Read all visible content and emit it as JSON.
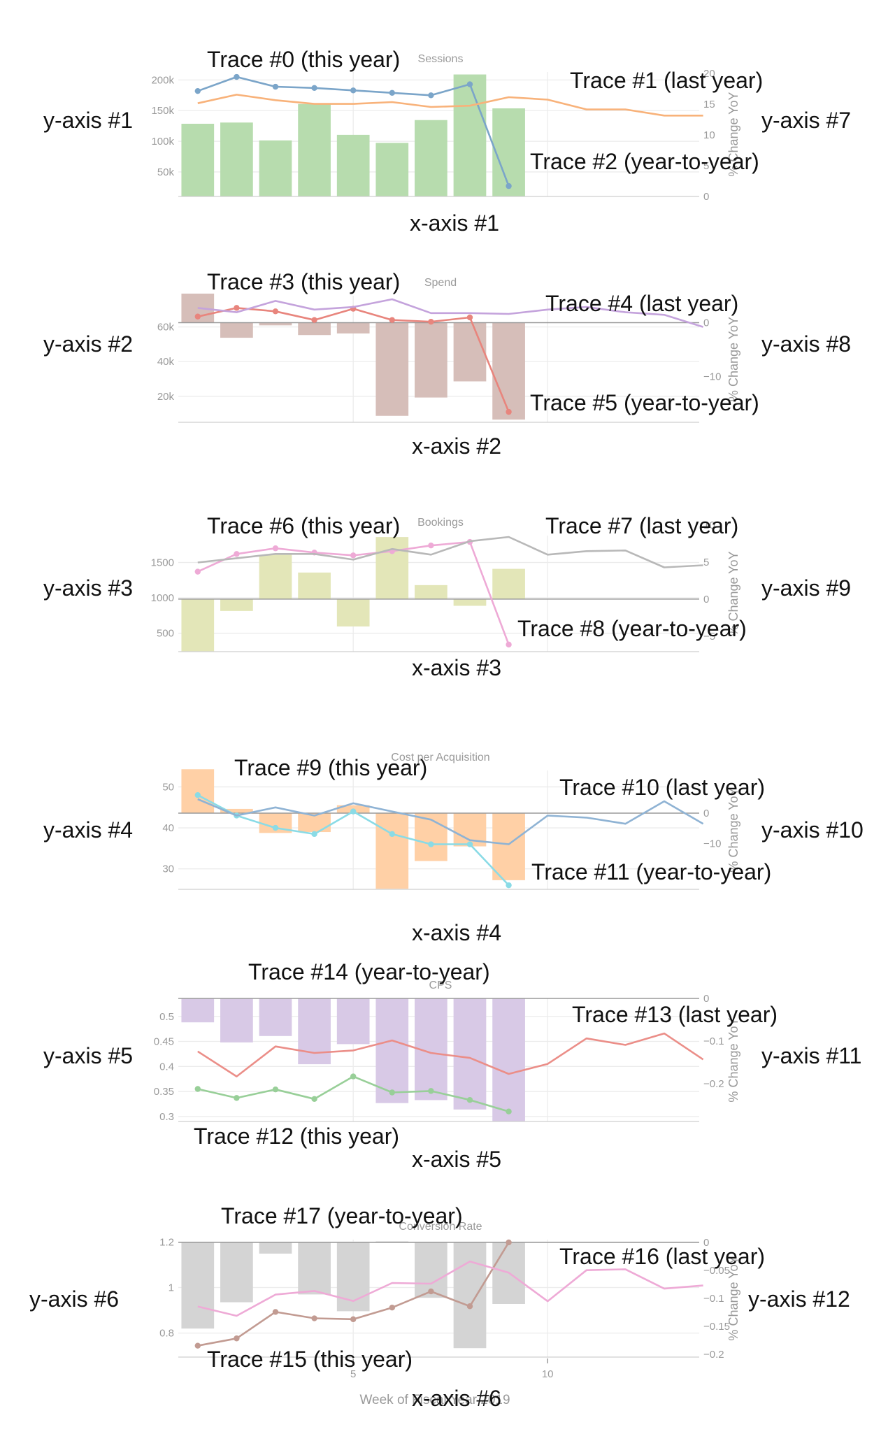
{
  "x_axis_title": "Week of Fiscal Year 2019",
  "chart_data": [
    {
      "type": "bar+line",
      "title": "Sessions",
      "x": [
        1,
        2,
        3,
        4,
        5,
        6,
        7,
        8,
        9,
        10,
        11,
        12,
        13,
        14
      ],
      "xlim": [
        0.5,
        13.9
      ],
      "y_ticks": [
        "200k",
        "150k",
        "100k",
        "50k"
      ],
      "y_tick_values": [
        200000,
        150000,
        100000,
        50000
      ],
      "ylim": [
        10000,
        213000
      ],
      "y2_title": "% Change YoY",
      "y2_ticks": [
        "20",
        "15",
        "10",
        "5",
        "0"
      ],
      "y2_tick_values": [
        20,
        15,
        10,
        5,
        0
      ],
      "y2lim": [
        0,
        20.2
      ],
      "series": [
        {
          "name": "this year",
          "kind": "line",
          "axis": "y",
          "color": "#7ba5c9",
          "markers": true,
          "x": [
            1,
            2,
            3,
            4,
            5,
            6,
            7,
            8,
            9
          ],
          "values": [
            182000,
            205000,
            189000,
            187000,
            183000,
            179000,
            175000,
            193000,
            27000
          ]
        },
        {
          "name": "last year",
          "kind": "line",
          "axis": "y",
          "color": "#f8b27a",
          "markers": false,
          "x": [
            1,
            2,
            3,
            4,
            5,
            6,
            7,
            8,
            9,
            10,
            11,
            12,
            13,
            14
          ],
          "values": [
            162000,
            176000,
            167000,
            161000,
            161000,
            164000,
            156000,
            158000,
            172000,
            168000,
            152000,
            152000,
            142000,
            142000
          ]
        },
        {
          "name": "year-to-year",
          "kind": "bar",
          "axis": "y2",
          "color": "#b7dcae",
          "x": [
            1,
            2,
            3,
            4,
            5,
            6,
            7,
            8,
            9
          ],
          "values": [
            11.8,
            12,
            9.1,
            15,
            10,
            8.7,
            12.4,
            19.8,
            14.3
          ]
        }
      ],
      "annotations": [
        "Trace #0 (this year)",
        "Trace #1 (last year)",
        "Trace #2 (year-to-year)",
        "y-axis #1",
        "y-axis #7",
        "x-axis #1"
      ]
    },
    {
      "type": "bar+line",
      "title": "Spend",
      "x": [
        1,
        2,
        3,
        4,
        5,
        6,
        7,
        8,
        9,
        10,
        11,
        12,
        13,
        14
      ],
      "xlim": [
        0.5,
        13.9
      ],
      "y_ticks": [
        "60k",
        "40k",
        "20k"
      ],
      "y_tick_values": [
        60000,
        40000,
        20000
      ],
      "ylim": [
        5000,
        78000
      ],
      "y2_title": "% Change YoY",
      "y2_ticks": [
        "0",
        "−10"
      ],
      "y2_tick_values": [
        0,
        -10
      ],
      "y2lim": [
        -18.5,
        5
      ],
      "series": [
        {
          "name": "this year",
          "kind": "line",
          "axis": "y",
          "color": "#e8857d",
          "markers": true,
          "x": [
            1,
            2,
            3,
            4,
            5,
            6,
            7,
            8,
            9
          ],
          "values": [
            66000,
            71000,
            69000,
            64000,
            70500,
            64000,
            63000,
            65500,
            11000
          ]
        },
        {
          "name": "last year",
          "kind": "line",
          "axis": "y",
          "color": "#c4a3dc",
          "markers": false,
          "x": [
            1,
            2,
            3,
            4,
            5,
            6,
            7,
            8,
            9,
            10,
            11,
            12,
            13,
            14
          ],
          "values": [
            71000,
            68500,
            75000,
            70000,
            71500,
            76000,
            68000,
            68000,
            67500,
            70000,
            71500,
            68500,
            67000,
            60000
          ]
        },
        {
          "name": "year-to-year",
          "kind": "bar",
          "axis": "y2",
          "color": "#d6beb9",
          "x": [
            1,
            2,
            3,
            4,
            5,
            6,
            7,
            8,
            9
          ],
          "values": [
            5.4,
            -2.8,
            -0.5,
            -2.3,
            -2,
            -17.3,
            -13.9,
            -10.9,
            -18
          ]
        }
      ],
      "annotations": [
        "Trace #3 (this year)",
        "Trace #4 (last year)",
        "Trace #5 (year-to-year)",
        "y-axis #2",
        "y-axis #8",
        "x-axis #2"
      ]
    },
    {
      "type": "bar+line",
      "title": "Bookings",
      "x": [
        1,
        2,
        3,
        4,
        5,
        6,
        7,
        8,
        9,
        10,
        11,
        12,
        13,
        14
      ],
      "xlim": [
        0.5,
        13.9
      ],
      "y_ticks": [
        "1500",
        "1000",
        "500"
      ],
      "y_tick_values": [
        1500,
        1000,
        500
      ],
      "ylim": [
        240,
        1880
      ],
      "y2_title": "% Change YoY",
      "y2_ticks": [
        "10",
        "5",
        "0",
        "−5"
      ],
      "y2_tick_values": [
        10,
        5,
        0,
        -5
      ],
      "y2lim": [
        -7.1,
        8.6
      ],
      "series": [
        {
          "name": "this year",
          "kind": "line",
          "axis": "y",
          "color": "#eeaad6",
          "markers": true,
          "x": [
            1,
            2,
            3,
            4,
            5,
            6,
            7,
            8,
            9
          ],
          "values": [
            1370,
            1620,
            1700,
            1640,
            1600,
            1660,
            1740,
            1790,
            340
          ]
        },
        {
          "name": "last year",
          "kind": "line",
          "axis": "y",
          "color": "#b8b8b8",
          "markers": false,
          "x": [
            1,
            2,
            3,
            4,
            5,
            6,
            7,
            8,
            9,
            10,
            11,
            12,
            13,
            14
          ],
          "values": [
            1500,
            1560,
            1620,
            1620,
            1540,
            1690,
            1610,
            1800,
            1860,
            1610,
            1660,
            1670,
            1430,
            1460
          ]
        },
        {
          "name": "year-to-year",
          "kind": "bar",
          "axis": "y2",
          "color": "#e3e6b8",
          "x": [
            1,
            2,
            3,
            4,
            5,
            6,
            7,
            8,
            9
          ],
          "values": [
            -7.05,
            -1.6,
            6,
            3.6,
            -3.7,
            8.4,
            1.9,
            -0.9,
            4.1
          ]
        }
      ],
      "annotations": [
        "Trace #6 (this year)",
        "Trace #7 (last year)",
        "Trace #8 (year-to-year)",
        "y-axis #3",
        "y-axis #9",
        "x-axis #3"
      ]
    },
    {
      "type": "bar+line",
      "title": "Cost per Acquisition",
      "x": [
        1,
        2,
        3,
        4,
        5,
        6,
        7,
        8,
        9,
        10,
        11,
        12,
        13,
        14
      ],
      "xlim": [
        0.5,
        13.9
      ],
      "y_ticks": [
        "50",
        "40",
        "30"
      ],
      "y_tick_values": [
        50,
        40,
        30
      ],
      "ylim": [
        25,
        54
      ],
      "y2_title": "% Change YoY",
      "y2_ticks": [
        "0",
        "−10"
      ],
      "y2_tick_values": [
        0,
        -10
      ],
      "y2lim": [
        -25,
        14
      ],
      "series": [
        {
          "name": "this year",
          "kind": "line",
          "axis": "y",
          "color": "#8adbe6",
          "markers": true,
          "x": [
            1,
            2,
            3,
            4,
            5,
            6,
            7,
            8,
            9
          ],
          "values": [
            48,
            43,
            40,
            38.5,
            44,
            38.5,
            36,
            36,
            26
          ]
        },
        {
          "name": "last year",
          "kind": "line",
          "axis": "y",
          "color": "#8fb3d4",
          "markers": false,
          "x": [
            1,
            2,
            3,
            4,
            5,
            6,
            7,
            8,
            9,
            10,
            11,
            12,
            13,
            14
          ],
          "values": [
            47,
            43,
            45,
            43,
            46,
            44,
            42,
            37,
            36,
            43,
            42.5,
            41,
            46.5,
            41
          ]
        },
        {
          "name": "year-to-year",
          "kind": "bar",
          "axis": "y2",
          "color": "#ffd0a6",
          "x": [
            1,
            2,
            3,
            4,
            5,
            6,
            7,
            8,
            9
          ],
          "values": [
            14.4,
            1.4,
            -6.5,
            -6.2,
            2.6,
            -24.8,
            -15.7,
            -10.9,
            -22
          ]
        }
      ],
      "annotations": [
        "Trace #9 (this year)",
        "Trace #10 (last year)",
        "Trace #11 (year-to-year)",
        "y-axis #4",
        "y-axis #10",
        "x-axis #4"
      ]
    },
    {
      "type": "bar+line",
      "title": "CPS",
      "x": [
        1,
        2,
        3,
        4,
        5,
        6,
        7,
        8,
        9,
        10,
        11,
        12,
        13,
        14
      ],
      "xlim": [
        0.5,
        13.9
      ],
      "y_ticks": [
        "0.5",
        "0.45",
        "0.4",
        "0.35",
        "0.3"
      ],
      "y_tick_values": [
        0.5,
        0.45,
        0.4,
        0.35,
        0.3
      ],
      "ylim": [
        0.29,
        0.536
      ],
      "y2_title": "% Change YoY",
      "y2_ticks": [
        "0",
        "−0.1",
        "−0.2"
      ],
      "y2_tick_values": [
        0,
        -0.1,
        -0.2
      ],
      "y2lim": [
        -0.288,
        0
      ],
      "series": [
        {
          "name": "this year",
          "kind": "line",
          "axis": "y",
          "color": "#98cf98",
          "markers": true,
          "x": [
            1,
            2,
            3,
            4,
            5,
            6,
            7,
            8,
            9
          ],
          "values": [
            0.355,
            0.337,
            0.354,
            0.335,
            0.38,
            0.348,
            0.351,
            0.333,
            0.31
          ]
        },
        {
          "name": "last year",
          "kind": "line",
          "axis": "y",
          "color": "#eb8e88",
          "markers": false,
          "x": [
            1,
            2,
            3,
            4,
            5,
            6,
            7,
            8,
            9,
            10,
            11,
            12,
            13,
            14
          ],
          "values": [
            0.43,
            0.38,
            0.44,
            0.427,
            0.432,
            0.452,
            0.427,
            0.417,
            0.385,
            0.405,
            0.456,
            0.443,
            0.466,
            0.414
          ]
        },
        {
          "name": "year-to-year",
          "kind": "bar",
          "axis": "y2",
          "color": "#d8c9e6",
          "x": [
            1,
            2,
            3,
            4,
            5,
            6,
            7,
            8,
            9
          ],
          "values": [
            -0.056,
            -0.103,
            -0.088,
            -0.154,
            -0.107,
            -0.245,
            -0.238,
            -0.26,
            -0.288
          ]
        }
      ],
      "annotations": [
        "Trace #14 (year-to-year)",
        "Trace #13 (last year)",
        "Trace #12 (this year)",
        "y-axis #5",
        "y-axis #11",
        "x-axis #5"
      ]
    },
    {
      "type": "bar+line",
      "title": "Conversion Rate",
      "x": [
        1,
        2,
        3,
        4,
        5,
        6,
        7,
        8,
        9,
        10,
        11,
        12,
        13,
        14
      ],
      "xlim": [
        0.5,
        13.9
      ],
      "x_ticks": [
        "5",
        "10"
      ],
      "x_tick_values": [
        5,
        10
      ],
      "y_ticks": [
        "1.2",
        "1",
        "0.8"
      ],
      "y_tick_values": [
        1.2,
        1,
        0.8
      ],
      "ylim": [
        0.695,
        1.21
      ],
      "y2_title": "% Change YoY",
      "y2_ticks": [
        "0",
        "−0.05",
        "−0.1",
        "−0.15",
        "−0.2"
      ],
      "y2_tick_values": [
        0,
        -0.05,
        -0.1,
        -0.15,
        -0.2
      ],
      "y2lim": [
        -0.205,
        0.005
      ],
      "series": [
        {
          "name": "this year",
          "kind": "line",
          "axis": "y",
          "color": "#c29b92",
          "markers": true,
          "x": [
            1,
            2,
            3,
            4,
            5,
            6,
            7,
            8,
            9
          ],
          "values": [
            0.745,
            0.777,
            0.893,
            0.865,
            0.861,
            0.912,
            0.983,
            0.918,
            1.198
          ]
        },
        {
          "name": "last year",
          "kind": "line",
          "axis": "y",
          "color": "#eeaad6",
          "markers": false,
          "x": [
            1,
            2,
            3,
            4,
            5,
            6,
            7,
            8,
            9,
            10,
            11,
            12,
            13,
            14
          ],
          "values": [
            0.917,
            0.876,
            0.969,
            0.985,
            0.941,
            1.02,
            1.017,
            1.114,
            1.065,
            0.94,
            1.076,
            1.08,
            0.995,
            1.009
          ]
        },
        {
          "name": "year-to-year",
          "kind": "bar",
          "axis": "y2",
          "color": "#d4d4d4",
          "x": [
            1,
            2,
            3,
            4,
            5,
            6,
            7,
            8,
            9
          ],
          "values": [
            -0.154,
            -0.107,
            -0.02,
            -0.093,
            -0.123,
            0.002,
            -0.099,
            -0.189,
            -0.11
          ]
        }
      ],
      "annotations": [
        "Trace #17 (year-to-year)",
        "Trace #16 (last year)",
        "Trace #15 (this year)",
        "y-axis #6",
        "y-axis #12",
        "x-axis #6"
      ]
    }
  ]
}
